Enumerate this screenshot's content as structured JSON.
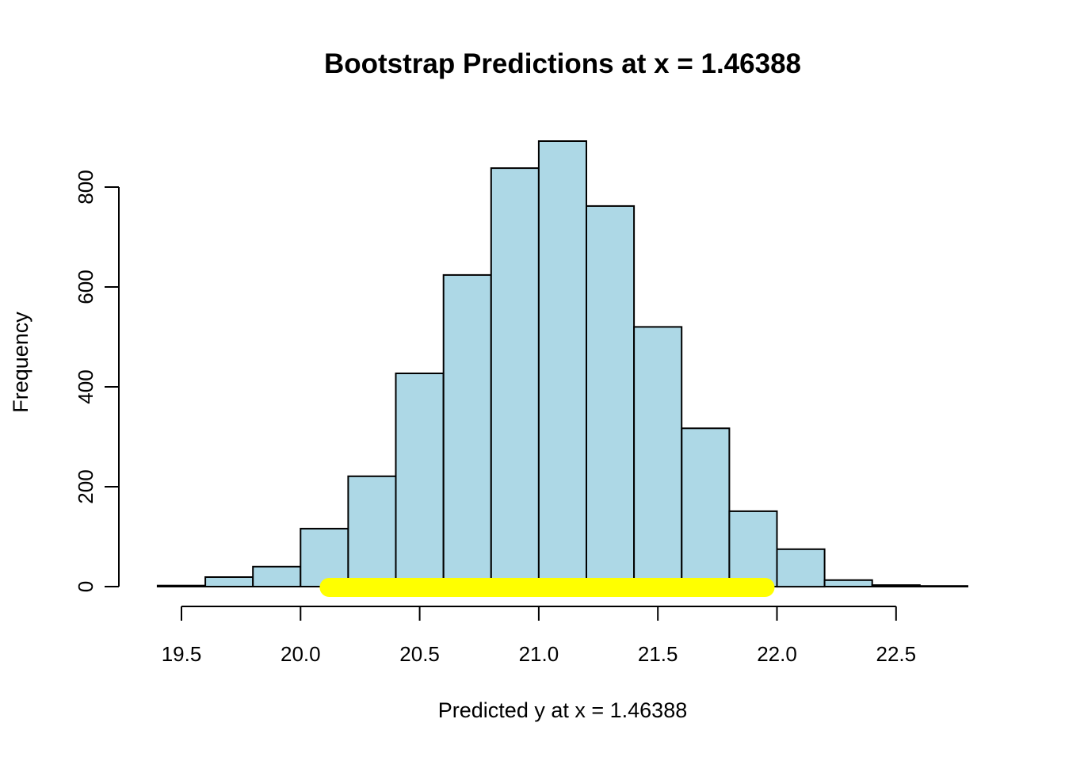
{
  "chart_data": {
    "type": "bar",
    "subtype": "histogram",
    "title": "Bootstrap Predictions at x = 1.46388",
    "xlabel": "Predicted y at x = 1.46388",
    "ylabel": "Frequency",
    "bin_edges": [
      19.4,
      19.6,
      19.8,
      20.0,
      20.2,
      20.4,
      20.6,
      20.8,
      21.0,
      21.2,
      21.4,
      21.6,
      21.8,
      22.0,
      22.2,
      22.4,
      22.6,
      22.8
    ],
    "counts": [
      2,
      19,
      40,
      116,
      221,
      427,
      624,
      838,
      892,
      762,
      520,
      317,
      151,
      75,
      13,
      3,
      1
    ],
    "x_ticks": [
      19.5,
      20.0,
      20.5,
      21.0,
      21.5,
      22.0,
      22.5
    ],
    "x_tick_labels": [
      "19.5",
      "20.0",
      "20.5",
      "21.0",
      "21.5",
      "22.0",
      "22.5"
    ],
    "y_ticks": [
      0,
      200,
      400,
      600,
      800
    ],
    "y_tick_labels": [
      "0",
      "200",
      "400",
      "600",
      "800"
    ],
    "xlim": [
      19.24,
      22.96
    ],
    "ylim": [
      0,
      937
    ],
    "grid": false,
    "legend": null,
    "bar_fill": "#ADD8E6",
    "bar_stroke": "#000000",
    "interval_band": {
      "from": 20.12,
      "to": 21.95,
      "color": "#FFFF00"
    }
  }
}
